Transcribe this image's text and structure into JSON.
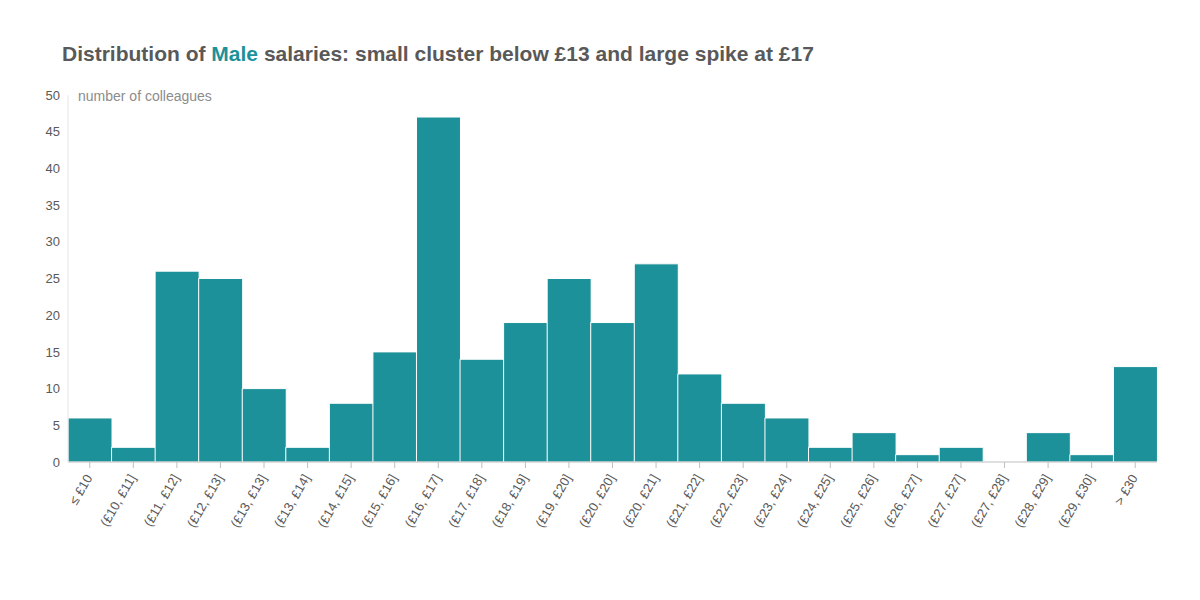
{
  "chart_data": {
    "type": "bar",
    "title": "Distribution of Male salaries: small cluster below £13 and large spike at £17",
    "y_label": "number of colleagues",
    "categories": [
      "≤ £10",
      "(£10, £11]",
      "(£11, £12]",
      "(£12, £13]",
      "(£13, £13]",
      "(£13, £14]",
      "(£14, £15]",
      "(£15, £16]",
      "(£16, £17]",
      "(£17, £18]",
      "(£18, £19]",
      "(£19, £20]",
      "(£20, £20]",
      "(£20, £21]",
      "(£21, £22]",
      "(£22, £23]",
      "(£23, £24]",
      "(£24, £25]",
      "(£25, £26]",
      "(£26, £27]",
      "(£27, £27]",
      "(£27, £28]",
      "(£28, £29]",
      "(£29, £30]",
      "> £30"
    ],
    "values": [
      6,
      2,
      26,
      25,
      10,
      2,
      8,
      15,
      47,
      14,
      19,
      25,
      19,
      27,
      12,
      8,
      6,
      2,
      4,
      1,
      2,
      0,
      4,
      1,
      13
    ],
    "color": "#1d9199",
    "ylim": [
      0,
      50
    ],
    "yticks": [
      0,
      5,
      10,
      15,
      20,
      25,
      30,
      35,
      40,
      45,
      50
    ],
    "grid": false
  }
}
